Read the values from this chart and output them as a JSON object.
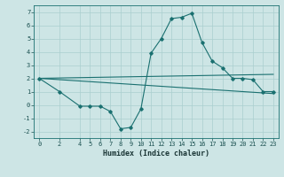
{
  "xlabel": "Humidex (Indice chaleur)",
  "bg_color": "#cde5e5",
  "grid_color": "#aacfcf",
  "line_color": "#1a7070",
  "xlim": [
    -0.5,
    23.5
  ],
  "ylim": [
    -2.5,
    7.5
  ],
  "xticks": [
    0,
    2,
    4,
    5,
    6,
    7,
    8,
    9,
    10,
    11,
    12,
    13,
    14,
    15,
    16,
    17,
    18,
    19,
    20,
    21,
    22,
    23
  ],
  "yticks": [
    -2,
    -1,
    0,
    1,
    2,
    3,
    4,
    5,
    6,
    7
  ],
  "line1_x": [
    0,
    2,
    4,
    5,
    6,
    7,
    8,
    9,
    10,
    11,
    12,
    13,
    14,
    15,
    16,
    17,
    18,
    19,
    20,
    21,
    22,
    23
  ],
  "line1_y": [
    2.0,
    1.0,
    -0.1,
    -0.1,
    -0.1,
    -0.5,
    -1.8,
    -1.7,
    -0.3,
    3.9,
    5.0,
    6.5,
    6.6,
    6.9,
    4.7,
    3.3,
    2.8,
    2.0,
    2.0,
    1.9,
    1.0,
    1.0
  ],
  "line2_x": [
    0,
    23
  ],
  "line2_y": [
    2.0,
    0.85
  ],
  "line3_x": [
    0,
    23
  ],
  "line3_y": [
    2.0,
    2.3
  ],
  "tick_fontsize": 5,
  "xlabel_fontsize": 6
}
